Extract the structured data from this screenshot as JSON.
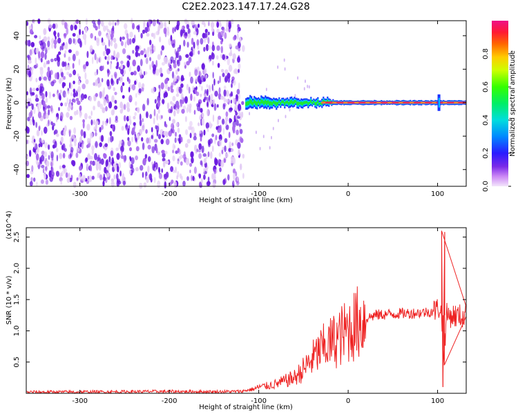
{
  "title": "C2E2.2023.147.17.24.G28",
  "colors": {
    "snr_line": "#ee2222",
    "spectrogram_noise_dark": "#6a1ae0",
    "spectrogram_noise_light": "#e3ccf5",
    "spectral_band": [
      "#1a33ff",
      "#00ccff",
      "#22ee22",
      "#ffff00",
      "#ff2a55"
    ]
  },
  "chart_data": [
    {
      "type": "heatmap",
      "title": "C2E2.2023.147.17.24.G28",
      "xlabel": "Height of straight line (km)",
      "ylabel": "Frequency (Hz)",
      "xlim": [
        -360,
        132
      ],
      "ylim": [
        -50,
        49
      ],
      "xticks": [
        -300,
        -200,
        -100,
        0,
        100
      ],
      "yticks": [
        -40,
        -20,
        0,
        20,
        40
      ],
      "colorbar": {
        "label": "Normalized spectral amplitude",
        "range": [
          0.0,
          1.0
        ],
        "ticks": [
          "0.0",
          "0.2",
          "0.4",
          "0.6",
          "0.8"
        ],
        "colormap": "rainbow"
      },
      "regions": [
        {
          "x_range": [
            -360,
            -117
          ],
          "description": "scattered noise across full frequency range, amplitude ~0.0-0.1"
        },
        {
          "x_range": [
            -115,
            132
          ],
          "frequency_center": 0,
          "description": "narrow carrier line near 0 Hz, amplitude rising to ~0.9"
        }
      ],
      "grid": false
    },
    {
      "type": "line",
      "xlabel": "Height of straight line (km)",
      "ylabel": "SNR (10 * v/v)",
      "y_multiplier": "(x10^4)",
      "xlim": [
        -360,
        132
      ],
      "ylim": [
        0,
        26500
      ],
      "xticks": [
        -300,
        -200,
        -100,
        0,
        100
      ],
      "yticks": [
        {
          "value": 5000,
          "label": "0.5"
        },
        {
          "value": 10000,
          "label": "1.0"
        },
        {
          "value": 15000,
          "label": "1.5"
        },
        {
          "value": 20000,
          "label": "2.0"
        },
        {
          "value": 25000,
          "label": "2.5"
        }
      ],
      "series": [
        {
          "points": [
            [
              -360,
              200
            ],
            [
              -300,
              220
            ],
            [
              -200,
              300
            ],
            [
              -150,
              250
            ],
            [
              -120,
              300
            ],
            [
              -105,
              700
            ],
            [
              -100,
              1000
            ],
            [
              -90,
              1200
            ],
            [
              -80,
              1500
            ],
            [
              -70,
              2000
            ],
            [
              -60,
              2500
            ],
            [
              -50,
              3800
            ],
            [
              -40,
              5500
            ],
            [
              -30,
              7000
            ],
            [
              -20,
              8000
            ],
            [
              -10,
              9000
            ],
            [
              -5,
              9500
            ],
            [
              0,
              10200
            ],
            [
              10,
              11200
            ],
            [
              20,
              12000
            ],
            [
              30,
              12500
            ],
            [
              40,
              12600
            ],
            [
              50,
              12700
            ],
            [
              60,
              12800
            ],
            [
              70,
              12800
            ],
            [
              80,
              12900
            ],
            [
              90,
              13000
            ],
            [
              95,
              13200
            ],
            [
              100,
              13500
            ],
            [
              103,
              14000
            ],
            [
              105,
              11000
            ],
            [
              107,
              6000
            ],
            [
              110,
              12500
            ],
            [
              120,
              12400
            ],
            [
              132,
              12300
            ]
          ],
          "spikes": [
            [
              104.5,
              26000
            ],
            [
              106,
              1000
            ],
            [
              108,
              25800
            ],
            [
              107.5,
              4500
            ]
          ]
        }
      ],
      "grid": false
    }
  ]
}
